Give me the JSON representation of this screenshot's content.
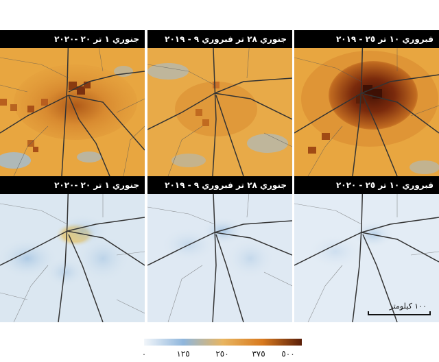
{
  "panels": {
    "top_left": {
      "label": "جنوري ١ تر ٢٠ -٢٠٢٠"
    },
    "top_mid": {
      "label": "جنوري ٢٨ تر فبروري ٩ - ٢٠١٩"
    },
    "top_right": {
      "label": "فبروري ١٠ تر ٢٥ - ٢٠١٩"
    },
    "bot_left": {
      "label": "جنوري ١ تر ٢٠ -٢٠٢٠"
    },
    "bot_mid": {
      "label": "جنوري ٢٨ تر فبروري ٩ - ٢٠١٩"
    },
    "bot_right": {
      "label": "فبروري ١٠ تر ٢٥ - ٢٠٢٠"
    }
  },
  "scale_bar": {
    "label": "١٠٠ كيلومتر"
  },
  "legend": {
    "ticks": [
      "٠",
      "١٢٥",
      "٢٥٠",
      "٣٧٥",
      "٥٠٠"
    ],
    "colors": [
      "#f2f6fa",
      "#8fb6dc",
      "#e8b560",
      "#d87a1f",
      "#5a1e08"
    ]
  },
  "palette": {
    "no2_high_orange": "#e8a640",
    "no2_hotspot": "#5a1e08",
    "no2_low_blue": "#dbe7f1",
    "road_color": "#333333"
  }
}
